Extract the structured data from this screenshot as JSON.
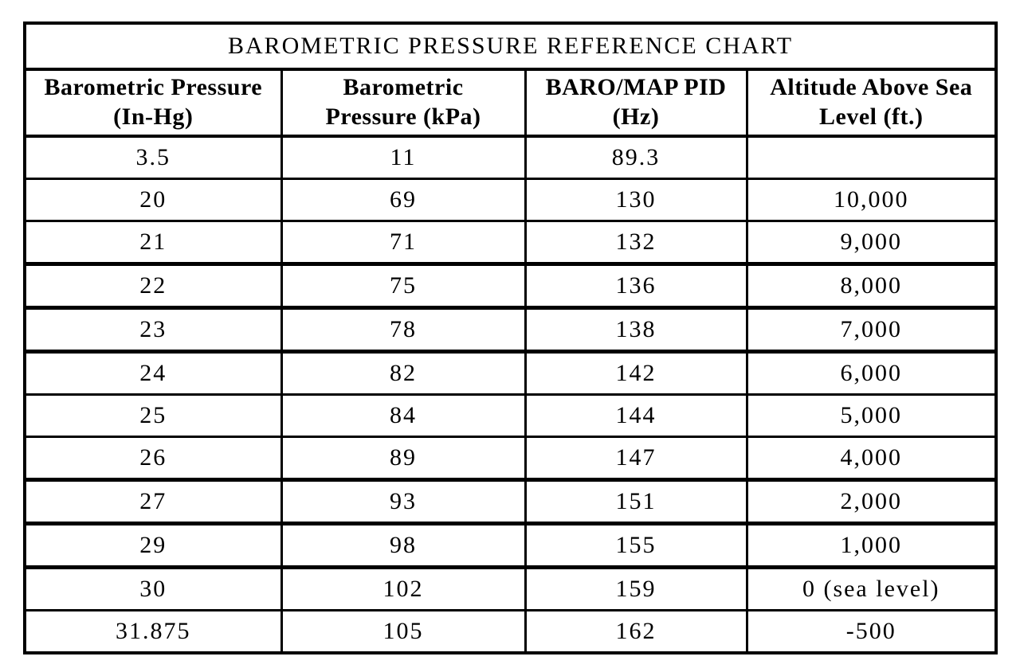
{
  "page": {
    "background_color": "#ffffff",
    "text_color": "#000000",
    "border_color": "#000000"
  },
  "chart_data": {
    "type": "table",
    "title": "BAROMETRIC PRESSURE REFERENCE CHART",
    "columns": [
      {
        "line1": "Barometric Pressure",
        "line2": "(In-Hg)"
      },
      {
        "line1": "Barometric",
        "line2": "Pressure (kPa)"
      },
      {
        "line1": "BARO/MAP PID",
        "line2": "(Hz)"
      },
      {
        "line1": "Altitude Above Sea",
        "line2": "Level (ft.)"
      }
    ],
    "rows": [
      [
        "3.5",
        "11",
        "89.3",
        ""
      ],
      [
        "20",
        "69",
        "130",
        "10,000"
      ],
      [
        "21",
        "71",
        "132",
        "9,000"
      ],
      [
        "22",
        "75",
        "136",
        "8,000"
      ],
      [
        "23",
        "78",
        "138",
        "7,000"
      ],
      [
        "24",
        "82",
        "142",
        "6,000"
      ],
      [
        "25",
        "84",
        "144",
        "5,000"
      ],
      [
        "26",
        "89",
        "147",
        "4,000"
      ],
      [
        "27",
        "93",
        "151",
        "2,000"
      ],
      [
        "29",
        "98",
        "155",
        "1,000"
      ],
      [
        "30",
        "102",
        "159",
        "0 (sea level)"
      ],
      [
        "31.875",
        "105",
        "162",
        "-500"
      ]
    ]
  }
}
